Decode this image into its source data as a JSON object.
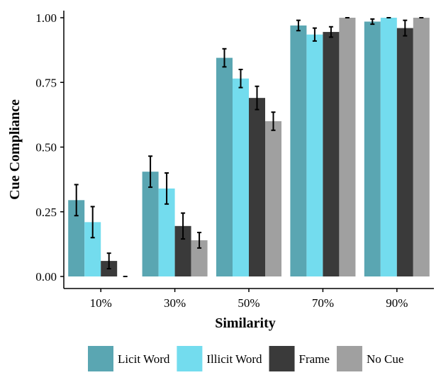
{
  "chart_data": {
    "type": "bar",
    "title": "",
    "xlabel": "Similarity",
    "ylabel": "Cue Compliance",
    "categories": [
      "10%",
      "30%",
      "50%",
      "70%",
      "90%"
    ],
    "ylim": [
      0,
      1.03
    ],
    "yticks": [
      "0.00",
      "0.25",
      "0.50",
      "0.75",
      "1.00"
    ],
    "grid": false,
    "legend_position": "bottom",
    "series": [
      {
        "name": "Licit Word",
        "color": "#5aa6b2",
        "values": [
          0.295,
          0.405,
          0.845,
          0.97,
          0.985
        ],
        "errors": [
          0.06,
          0.06,
          0.035,
          0.02,
          0.01
        ]
      },
      {
        "name": "Illicit Word",
        "color": "#73dcee",
        "values": [
          0.21,
          0.34,
          0.765,
          0.935,
          1.0
        ],
        "errors": [
          0.06,
          0.06,
          0.035,
          0.025,
          0.0
        ]
      },
      {
        "name": "Frame",
        "color": "#3a3a3a",
        "values": [
          0.06,
          0.195,
          0.69,
          0.945,
          0.96
        ],
        "errors": [
          0.03,
          0.05,
          0.045,
          0.02,
          0.03
        ]
      },
      {
        "name": "No Cue",
        "color": "#a0a0a0",
        "values": [
          0.0,
          0.14,
          0.6,
          1.0,
          1.0
        ],
        "errors": [
          0.0,
          0.03,
          0.035,
          0.0,
          0.0
        ]
      }
    ]
  }
}
